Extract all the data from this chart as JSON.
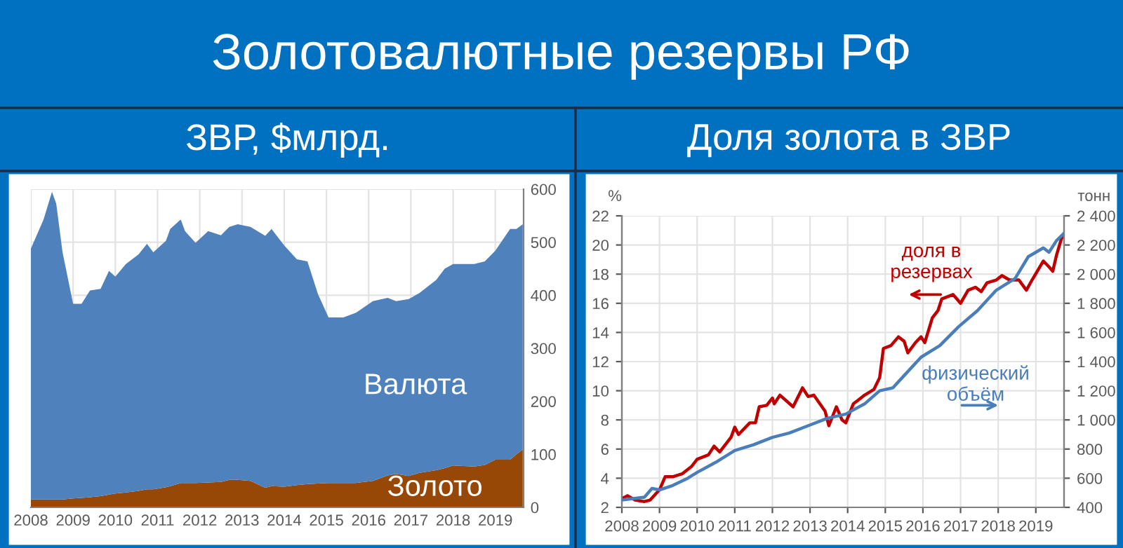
{
  "chart_data": [
    {
      "type": "area",
      "title": "ЗВР, $млрд.",
      "annotations": [
        "Золотовалютные резервы РФ"
      ],
      "stacked": true,
      "grid": true,
      "legend": false,
      "x": [
        2008.0,
        2008.3,
        2008.5,
        2008.6,
        2008.75,
        2009.0,
        2009.2,
        2009.4,
        2009.65,
        2009.85,
        2010.0,
        2010.25,
        2010.55,
        2010.75,
        2010.9,
        2011.2,
        2011.3,
        2011.55,
        2011.65,
        2011.9,
        2012.2,
        2012.5,
        2012.7,
        2012.9,
        2013.2,
        2013.55,
        2013.7,
        2014.0,
        2014.3,
        2014.55,
        2014.8,
        2015.05,
        2015.4,
        2015.7,
        2016.1,
        2016.45,
        2016.65,
        2016.95,
        2017.2,
        2017.6,
        2017.8,
        2018.0,
        2018.5,
        2018.75,
        2019.0,
        2019.35,
        2019.5,
        2019.65
      ],
      "series": [
        {
          "name": "Золото",
          "color": "#974806",
          "values": [
            15,
            15,
            15,
            15,
            15,
            17,
            18,
            19,
            21,
            24,
            26,
            28,
            31,
            34,
            34,
            38,
            40,
            46,
            46,
            46,
            47,
            48,
            52,
            52,
            50,
            37,
            40,
            39,
            42,
            44,
            45,
            46,
            46,
            46,
            50,
            60,
            63,
            59,
            65,
            70,
            74,
            79,
            77,
            80,
            90,
            90,
            100,
            109
          ]
        },
        {
          "name": "Валюта",
          "color": "#4f81bd",
          "values": [
            473,
            528,
            580,
            558,
            466,
            367,
            366,
            390,
            391,
            422,
            409,
            431,
            446,
            463,
            447,
            465,
            485,
            497,
            475,
            453,
            474,
            465,
            477,
            482,
            479,
            475,
            485,
            455,
            426,
            420,
            357,
            312,
            312,
            321,
            339,
            335,
            326,
            334,
            339,
            359,
            376,
            380,
            382,
            384,
            394,
            435,
            425,
            425
          ]
        }
      ],
      "xlim": [
        2008,
        2019.67
      ],
      "xticks": [
        2008,
        2009,
        2010,
        2011,
        2012,
        2013,
        2014,
        2015,
        2016,
        2017,
        2018,
        2019
      ],
      "ylim": [
        0,
        600
      ],
      "yticks": [
        0,
        100,
        200,
        300,
        400,
        500,
        600
      ]
    },
    {
      "type": "line",
      "title": "Доля золота в ЗВР",
      "ylabel": "%",
      "y2label": "тонн",
      "grid": true,
      "legend": false,
      "marker": "none",
      "line_style": "solid",
      "series": [
        {
          "name": "доля в\nрезервах",
          "color": "#c00000",
          "x": [
            2008.0,
            2008.15,
            2008.35,
            2008.6,
            2008.75,
            2009.0,
            2009.15,
            2009.35,
            2009.6,
            2009.85,
            2010.0,
            2010.3,
            2010.45,
            2010.6,
            2010.9,
            2011.0,
            2011.1,
            2011.4,
            2011.55,
            2011.65,
            2011.85,
            2012.0,
            2012.05,
            2012.2,
            2012.55,
            2012.8,
            2012.95,
            2013.1,
            2013.4,
            2013.5,
            2013.7,
            2013.85,
            2013.95,
            2014.15,
            2014.25,
            2014.45,
            2014.7,
            2014.85,
            2014.95,
            2015.15,
            2015.35,
            2015.5,
            2015.6,
            2015.8,
            2015.95,
            2016.05,
            2016.25,
            2016.4,
            2016.5,
            2016.8,
            2017.0,
            2017.2,
            2017.4,
            2017.55,
            2017.7,
            2017.95,
            2018.1,
            2018.3,
            2018.55,
            2018.75,
            2018.9,
            2019.2,
            2019.35,
            2019.45,
            2019.55,
            2019.7,
            2019.75
          ],
          "values": [
            2.6,
            2.8,
            2.5,
            2.4,
            2.5,
            3.2,
            4.1,
            4.1,
            4.3,
            4.8,
            5.3,
            5.6,
            6.2,
            5.8,
            6.8,
            7.5,
            7.0,
            7.8,
            7.8,
            8.9,
            9.0,
            9.5,
            9.1,
            9.7,
            8.9,
            10.2,
            9.6,
            9.7,
            8.6,
            7.6,
            8.9,
            8.0,
            7.8,
            9.1,
            9.3,
            9.7,
            10.1,
            10.9,
            12.9,
            13.1,
            13.7,
            13.4,
            12.6,
            13.3,
            13.7,
            13.3,
            15.0,
            15.5,
            16.3,
            16.6,
            16.0,
            16.9,
            17.1,
            16.8,
            17.4,
            17.6,
            17.9,
            17.6,
            17.6,
            16.9,
            17.6,
            18.9,
            18.5,
            18.2,
            19.3,
            20.6,
            20.5
          ]
        },
        {
          "name": "физический\nобъём",
          "color": "#4a7ebb",
          "axis": "y2",
          "x": [
            2008.0,
            2008.6,
            2008.8,
            2009.0,
            2009.35,
            2009.75,
            2010.0,
            2010.5,
            2011.0,
            2011.5,
            2012.0,
            2012.45,
            2012.95,
            2013.45,
            2013.95,
            2014.45,
            2014.85,
            2015.2,
            2015.45,
            2015.95,
            2016.45,
            2016.95,
            2017.45,
            2017.95,
            2018.45,
            2018.8,
            2019.2,
            2019.35,
            2019.55,
            2019.75
          ],
          "values": [
            450,
            470,
            530,
            520,
            550,
            600,
            640,
            710,
            790,
            830,
            880,
            910,
            960,
            1010,
            1040,
            1110,
            1200,
            1220,
            1290,
            1430,
            1510,
            1640,
            1750,
            1890,
            1970,
            2120,
            2180,
            2150,
            2230,
            2280
          ]
        }
      ],
      "xlim": [
        2008,
        2019.75
      ],
      "xticks": [
        2008,
        2009,
        2010,
        2011,
        2012,
        2013,
        2014,
        2015,
        2016,
        2017,
        2018,
        2019
      ],
      "ylim": [
        2,
        22
      ],
      "yticks": [
        2,
        4,
        6,
        8,
        10,
        12,
        14,
        16,
        18,
        20,
        22
      ],
      "y2lim": [
        400,
        2400
      ],
      "y2ticks": [
        400,
        600,
        800,
        {
          "value": 1000,
          "label": "1 000"
        },
        {
          "value": 1200,
          "label": "1 200"
        },
        {
          "value": 1400,
          "label": "1 400"
        },
        {
          "value": 1600,
          "label": "1 600"
        },
        {
          "value": 1800,
          "label": "1 800"
        },
        {
          "value": 2000,
          "label": "2 000"
        },
        {
          "value": 2200,
          "label": "2 200"
        },
        {
          "value": 2400,
          "label": "2 400"
        }
      ]
    }
  ]
}
